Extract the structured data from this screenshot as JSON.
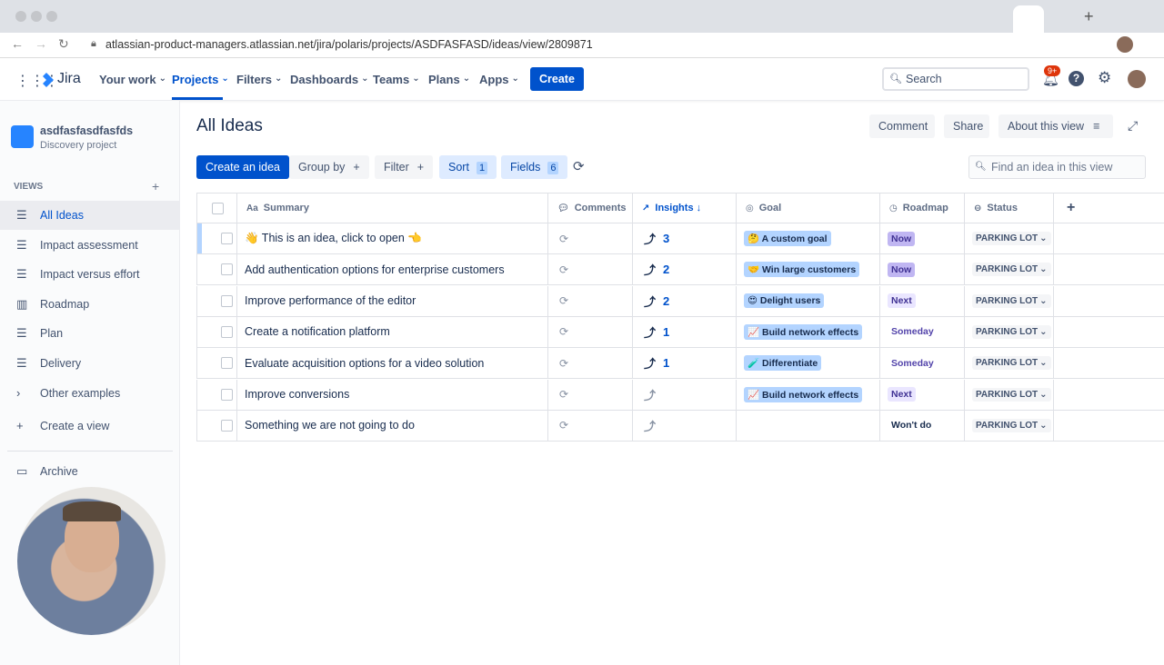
{
  "browser": {
    "url": "atlassian-product-managers.atlassian.net/jira/polaris/projects/ASDFASFASD/ideas/view/2809871"
  },
  "nav": {
    "product": "Jira",
    "items": [
      "Your work",
      "Projects",
      "Filters",
      "Dashboards",
      "Teams",
      "Plans",
      "Apps"
    ],
    "create": "Create",
    "search": "Search",
    "notifications": "9+"
  },
  "sidebar": {
    "project_name": "asdfasfasdfasfds",
    "project_type": "Discovery project",
    "views_label": "VIEWS",
    "views": [
      "All Ideas",
      "Impact assessment",
      "Impact versus effort",
      "Roadmap",
      "Plan",
      "Delivery",
      "Other examples"
    ],
    "create_view": "Create a view",
    "archive": "Archive"
  },
  "header": {
    "title": "All Ideas",
    "actions": [
      "Comment",
      "Share",
      "About this view"
    ]
  },
  "toolbar": {
    "create_idea": "Create an idea",
    "group_by": "Group by",
    "filter": "Filter",
    "sort": "Sort",
    "sort_count": 1,
    "fields": "Fields",
    "fields_count": 6,
    "search_placeholder": "Find an idea in this view"
  },
  "table": {
    "columns": [
      "Summary",
      "Comments",
      "Insights",
      "Goal",
      "Roadmap",
      "Status"
    ],
    "rows": [
      {
        "summary": "👋 This is an idea, click to open 👈",
        "insights": 3,
        "goal": "🤔 A custom goal",
        "roadmap": "Now",
        "status": "PARKING LOT"
      },
      {
        "summary": "Add authentication options for enterprise customers",
        "insights": 2,
        "goal": "🤝 Win large customers",
        "roadmap": "Now",
        "status": "PARKING LOT"
      },
      {
        "summary": "Improve performance of the editor",
        "insights": 2,
        "goal": "😍 Delight users",
        "roadmap": "Next",
        "status": "PARKING LOT"
      },
      {
        "summary": "Create a notification platform",
        "insights": 1,
        "goal": "📈 Build network effects",
        "roadmap": "Someday",
        "status": "PARKING LOT"
      },
      {
        "summary": "Evaluate acquisition options for a video solution",
        "insights": 1,
        "goal": "🧪 Differentiate",
        "roadmap": "Someday",
        "status": "PARKING LOT"
      },
      {
        "summary": "Improve conversions",
        "goal": "📈 Build network effects",
        "roadmap": "Next",
        "status": "PARKING LOT"
      },
      {
        "summary": "Something we are not going to do",
        "roadmap": "Won't do",
        "status": "PARKING LOT"
      }
    ]
  }
}
